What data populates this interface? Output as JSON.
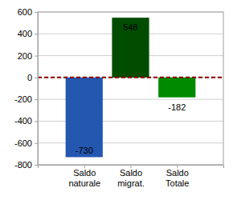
{
  "chart_data": {
    "type": "bar",
    "categories": [
      "Saldo naturale",
      "Saldo migrat.",
      "Saldo Totale"
    ],
    "values": [
      -730,
      548,
      -182
    ],
    "colors": [
      "#2457b0",
      "#004d00",
      "#008a00"
    ],
    "ylim": [
      -800,
      600
    ],
    "yticks": [
      -800,
      -600,
      -400,
      -200,
      0,
      200,
      400,
      600
    ],
    "grid": true,
    "data_labels": true
  }
}
